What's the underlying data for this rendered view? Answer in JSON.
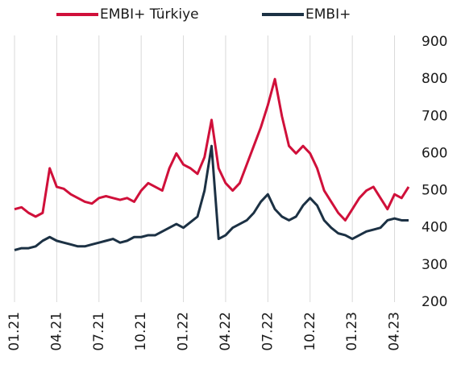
{
  "chart_data": {
    "type": "line",
    "categories": [
      "01.21",
      null,
      null,
      null,
      null,
      null,
      "04.21",
      null,
      null,
      null,
      null,
      null,
      "07.21",
      null,
      null,
      null,
      null,
      null,
      "10.21",
      null,
      null,
      null,
      null,
      null,
      "01.22",
      null,
      null,
      null,
      null,
      null,
      "04.22",
      null,
      null,
      null,
      null,
      null,
      "07.22",
      null,
      null,
      null,
      null,
      null,
      "10.22",
      null,
      null,
      null,
      null,
      null,
      "01.23",
      null,
      null,
      null,
      null,
      null,
      "04.23",
      null,
      null
    ],
    "series": [
      {
        "name": "EMBI+ Türkiye",
        "color": "#d0103a",
        "values": [
          450,
          455,
          440,
          430,
          440,
          560,
          510,
          505,
          490,
          480,
          470,
          465,
          480,
          485,
          480,
          475,
          480,
          470,
          500,
          520,
          510,
          500,
          560,
          600,
          570,
          560,
          545,
          590,
          690,
          560,
          520,
          500,
          520,
          570,
          620,
          670,
          730,
          800,
          700,
          620,
          600,
          620,
          600,
          560,
          500,
          470,
          440,
          420,
          450,
          480,
          500,
          510,
          480,
          450,
          490,
          480,
          510
        ]
      },
      {
        "name": "EMBI+",
        "color": "#1c3144",
        "values": [
          340,
          345,
          345,
          350,
          365,
          375,
          365,
          360,
          355,
          350,
          350,
          355,
          360,
          365,
          370,
          360,
          365,
          375,
          375,
          380,
          380,
          390,
          400,
          410,
          400,
          415,
          430,
          500,
          620,
          370,
          380,
          400,
          410,
          420,
          440,
          470,
          490,
          450,
          430,
          420,
          430,
          460,
          480,
          460,
          420,
          400,
          385,
          380,
          370,
          380,
          390,
          395,
          400,
          420,
          425,
          420,
          420
        ]
      }
    ],
    "ylim": [
      200,
      900
    ],
    "yticks": [
      200,
      300,
      400,
      500,
      600,
      700,
      800,
      900
    ],
    "grid": true,
    "legend": "top"
  }
}
